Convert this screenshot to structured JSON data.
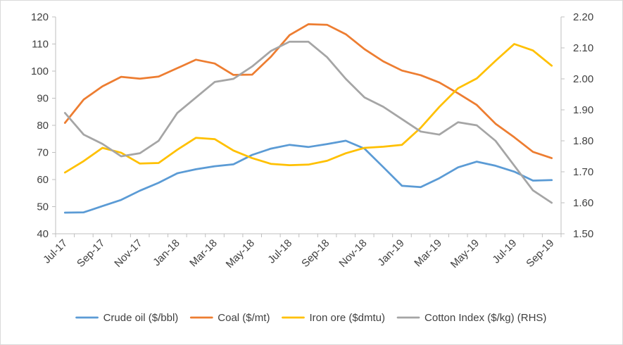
{
  "chart_data": {
    "type": "line",
    "title": "",
    "xlabel": "",
    "ylabel": "",
    "y2label": "",
    "x": [
      "Jul-17",
      "Aug-17",
      "Sep-17",
      "Oct-17",
      "Nov-17",
      "Dec-17",
      "Jan-18",
      "Feb-18",
      "Mar-18",
      "Apr-18",
      "May-18",
      "Jun-18",
      "Jul-18",
      "Aug-18",
      "Sep-18",
      "Oct-18",
      "Nov-18",
      "Dec-18",
      "Jan-19",
      "Feb-19",
      "Mar-19",
      "Apr-19",
      "May-19",
      "Jun-19",
      "Jul-19",
      "Aug-19",
      "Sep-19"
    ],
    "x_tick_labels": [
      "Jul-17",
      "Sep-17",
      "Nov-17",
      "Jan-18",
      "Mar-18",
      "May-18",
      "Jul-18",
      "Sep-18",
      "Nov-18",
      "Jan-19",
      "Mar-19",
      "May-19",
      "Jul-19",
      "Sep-19"
    ],
    "ylim": [
      40,
      120
    ],
    "y_ticks": [
      "40",
      "50",
      "60",
      "70",
      "80",
      "90",
      "100",
      "110",
      "120"
    ],
    "y2lim": [
      1.5,
      2.2
    ],
    "y2_ticks": [
      "1.50",
      "1.60",
      "1.70",
      "1.80",
      "1.90",
      "2.00",
      "2.10",
      "2.20"
    ],
    "grid": false,
    "legend_position": "bottom",
    "series": [
      {
        "name": "Crude oil ($/bbl)",
        "color": "#5b9bd5",
        "axis": "left",
        "values": [
          47.8,
          47.9,
          50.2,
          52.5,
          55.9,
          58.8,
          62.3,
          63.8,
          64.9,
          65.6,
          69.1,
          71.4,
          72.8,
          72.0,
          73.1,
          74.3,
          71.4,
          64.6,
          57.7,
          57.2,
          60.5,
          64.5,
          66.6,
          65.1,
          62.9,
          59.6,
          59.8
        ]
      },
      {
        "name": "Coal ($/mt)",
        "color": "#ed7d31",
        "axis": "left",
        "values": [
          80.9,
          89.5,
          94.4,
          97.9,
          97.2,
          98.0,
          101.1,
          104.2,
          102.8,
          98.6,
          98.7,
          105.3,
          113.3,
          117.3,
          117.1,
          113.6,
          108.1,
          103.6,
          100.2,
          98.5,
          95.8,
          91.8,
          87.5,
          80.6,
          75.6,
          70.2,
          67.9
        ]
      },
      {
        "name": "Iron ore ($dmtu)",
        "color": "#ffc000",
        "axis": "left",
        "values": [
          62.6,
          66.8,
          71.7,
          69.9,
          65.9,
          66.1,
          71.0,
          75.4,
          74.9,
          70.7,
          67.9,
          65.8,
          65.3,
          65.5,
          66.9,
          69.7,
          71.7,
          72.1,
          72.8,
          79.1,
          86.8,
          93.7,
          97.3,
          103.8,
          110.0,
          107.6,
          102.0
        ]
      },
      {
        "name": "Cotton Index ($/kg) (RHS)",
        "color": "#a5a5a5",
        "axis": "right",
        "values": [
          1.89,
          1.82,
          1.79,
          1.75,
          1.76,
          1.8,
          1.89,
          1.94,
          1.99,
          2.0,
          2.04,
          2.09,
          2.12,
          2.12,
          2.07,
          2.0,
          1.94,
          1.91,
          1.87,
          1.83,
          1.82,
          1.86,
          1.85,
          1.8,
          1.72,
          1.64,
          1.6
        ]
      }
    ]
  }
}
